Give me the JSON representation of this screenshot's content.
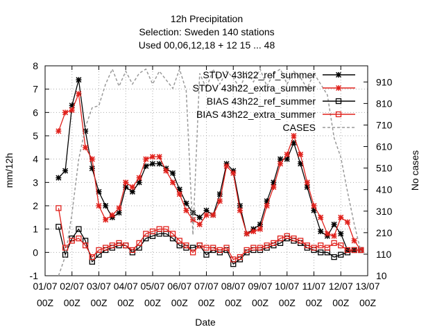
{
  "chart_data": {
    "type": "line",
    "title": "12h Precipitation",
    "subtitle": [
      "Selection: Sweden    140 stations",
      "Used  00,06,12,18  + 12 15 ... 48"
    ],
    "xlabel": "Date",
    "ylabel": "mm/12h",
    "y2label": "No cases",
    "x": [
      1.5,
      1.75,
      2,
      2.25,
      2.5,
      2.75,
      3,
      3.25,
      3.5,
      3.75,
      4,
      4.25,
      4.5,
      4.75,
      5,
      5.25,
      5.5,
      5.75,
      6,
      6.25,
      6.5,
      6.75,
      7,
      7.25,
      7.5,
      7.75,
      8,
      8.25,
      8.5,
      8.75,
      9,
      9.25,
      9.5,
      9.75,
      10,
      10.25,
      10.5,
      10.75,
      11,
      11.25,
      11.5,
      11.75,
      12,
      12.25,
      12.5,
      12.75
    ],
    "xlim": [
      1,
      13
    ],
    "xticks": [
      {
        "value": 1,
        "label": "01/07 00Z"
      },
      {
        "value": 2,
        "label": "02/07 00Z"
      },
      {
        "value": 3,
        "label": "03/07 00Z"
      },
      {
        "value": 4,
        "label": "04/07 00Z"
      },
      {
        "value": 5,
        "label": "05/07 00Z"
      },
      {
        "value": 6,
        "label": "06/07 00Z"
      },
      {
        "value": 7,
        "label": "07/07 00Z"
      },
      {
        "value": 8,
        "label": "08/07 00Z"
      },
      {
        "value": 9,
        "label": "09/07 00Z"
      },
      {
        "value": 10,
        "label": "10/07 00Z"
      },
      {
        "value": 11,
        "label": "11/07 00Z"
      },
      {
        "value": 12,
        "label": "12/07 00Z"
      },
      {
        "value": 13,
        "label": "13/07 00Z"
      }
    ],
    "ylim": [
      -1,
      8
    ],
    "yticks": [
      -1,
      0,
      1,
      2,
      3,
      4,
      5,
      6,
      7,
      8
    ],
    "y2lim": [
      10,
      985
    ],
    "y2ticks": [
      10,
      110,
      210,
      310,
      410,
      510,
      610,
      710,
      810,
      910
    ],
    "grid": true,
    "legend": "top-right",
    "series": [
      {
        "name": "STDV 43h22_ref_summer",
        "color": "#000000",
        "marker": "star",
        "values": [
          3.2,
          3.5,
          6.3,
          7.4,
          5.2,
          3.6,
          2.6,
          2.0,
          1.5,
          1.7,
          2.8,
          2.6,
          3.0,
          3.7,
          3.8,
          3.8,
          3.6,
          3.4,
          2.7,
          2.1,
          1.7,
          1.5,
          1.8,
          1.6,
          2.5,
          3.8,
          3.5,
          2.0,
          0.8,
          1.0,
          1.2,
          2.2,
          3.0,
          4.0,
          4.0,
          4.7,
          3.8,
          2.8,
          1.8,
          0.9,
          0.7,
          1.2,
          0.8,
          0.1,
          0.1,
          0.1
        ]
      },
      {
        "name": "STDV 43h22_extra_summer",
        "color": "#e0201b",
        "marker": "star",
        "values": [
          5.2,
          6.0,
          6.1,
          6.8,
          4.5,
          4.0,
          2.0,
          1.4,
          1.6,
          1.9,
          3.0,
          2.8,
          3.2,
          4.0,
          4.1,
          4.1,
          3.5,
          3.0,
          2.5,
          1.8,
          1.4,
          1.2,
          1.6,
          1.6,
          2.2,
          3.7,
          3.4,
          1.8,
          0.8,
          0.9,
          1.0,
          2.0,
          2.8,
          3.8,
          4.2,
          5.0,
          4.2,
          3.0,
          2.0,
          1.5,
          0.8,
          0.7,
          1.5,
          1.3,
          0.5,
          0.1
        ]
      },
      {
        "name": "BIAS 43h22_ref_summer",
        "color": "#000000",
        "marker": "square",
        "values": [
          1.1,
          -0.1,
          0.6,
          1.0,
          0.5,
          -0.4,
          -0.1,
          0.1,
          0.2,
          0.3,
          0.3,
          0.0,
          0.2,
          0.6,
          0.7,
          0.8,
          0.8,
          0.6,
          0.3,
          0.2,
          0.2,
          0.3,
          -0.1,
          0.1,
          0.0,
          0.1,
          -0.5,
          -0.3,
          0.0,
          0.1,
          0.1,
          0.2,
          0.3,
          0.4,
          0.6,
          0.5,
          0.4,
          0.2,
          0.1,
          0.0,
          0.0,
          -0.2,
          -0.1,
          0.0,
          0.1,
          0.1
        ]
      },
      {
        "name": "BIAS 43h22_extra_summer",
        "color": "#e0201b",
        "marker": "square",
        "values": [
          1.9,
          0.2,
          0.5,
          0.6,
          0.3,
          -0.2,
          0.1,
          0.2,
          0.3,
          0.4,
          0.3,
          0.1,
          0.4,
          0.8,
          0.9,
          1.0,
          1.0,
          0.8,
          0.5,
          0.3,
          0.0,
          0.3,
          0.2,
          0.2,
          0.1,
          0.2,
          -0.3,
          -0.2,
          0.1,
          0.2,
          0.2,
          0.3,
          0.4,
          0.6,
          0.7,
          0.6,
          0.5,
          0.3,
          0.2,
          0.3,
          0.2,
          0.4,
          0.3,
          0.1,
          0.1,
          0.1
        ]
      },
      {
        "name": "CASES",
        "color": "#999999",
        "marker": "none",
        "dash": true,
        "axis": "y2",
        "values": [
          10,
          100,
          300,
          550,
          700,
          790,
          800,
          900,
          970,
          890,
          960,
          900,
          950,
          970,
          900,
          960,
          920,
          880,
          970,
          870,
          200,
          950,
          880,
          970,
          900,
          960,
          930,
          880,
          960,
          910,
          970,
          890,
          950,
          970,
          900,
          960,
          930,
          880,
          950,
          900,
          850,
          650,
          560,
          400,
          250,
          120
        ]
      }
    ]
  }
}
